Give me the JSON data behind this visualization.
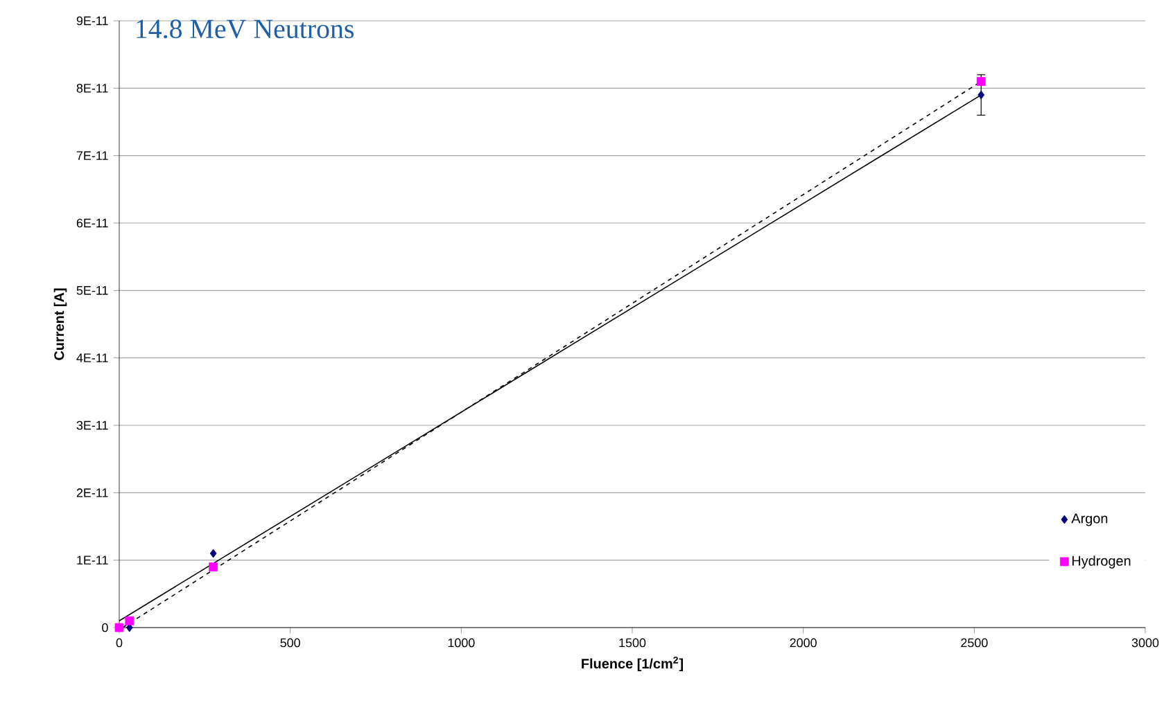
{
  "chart_data": {
    "type": "scatter",
    "title": "14.8 MeV Neutrons",
    "xlabel": "Fluence [1/cm$^{2}$]",
    "ylabel": "Current [A]",
    "x": [
      0,
      30,
      275,
      2520
    ],
    "series": [
      {
        "name": "Argon",
        "color": "#000080",
        "marker": "diamond",
        "values": [
          null,
          0,
          1.1e-11,
          7.9e-11
        ],
        "errors": [
          null,
          null,
          null,
          3e-12
        ]
      },
      {
        "name": "Hydrogen",
        "color": "#ff00ff",
        "marker": "square",
        "values": [
          0,
          1e-12,
          9e-12,
          8.1e-11
        ]
      },
      {
        "type": "line",
        "color": "#000000",
        "marker": "none",
        "line_style": "solid",
        "x": [
          0,
          2520
        ],
        "values": [
          1e-12,
          7.9e-11
        ]
      },
      {
        "type": "line",
        "color": "#000000",
        "marker": "none",
        "line_style": "dashed",
        "x": [
          10,
          2520
        ],
        "values": [
          0,
          8.1e-11
        ]
      }
    ],
    "xlim": [
      0,
      3000
    ],
    "xticks": [
      0,
      500,
      1000,
      1500,
      2000,
      2500,
      3000
    ],
    "ylim": [
      0,
      9e-11
    ],
    "yticks": [
      0,
      {
        "value": 1e-11,
        "label": "1E-11"
      },
      {
        "value": 2e-11,
        "label": "2E-11"
      },
      {
        "value": 3e-11,
        "label": "3E-11"
      },
      {
        "value": 4e-11,
        "label": "4E-11"
      },
      {
        "value": 5e-11,
        "label": "5E-11"
      },
      {
        "value": 6e-11,
        "label": "6E-11"
      },
      {
        "value": 7e-11,
        "label": "7E-11"
      },
      {
        "value": 8e-11,
        "label": "8E-11"
      },
      {
        "value": 9e-11,
        "label": "9E-11"
      }
    ],
    "grid": "y",
    "legend": "bottom right"
  }
}
